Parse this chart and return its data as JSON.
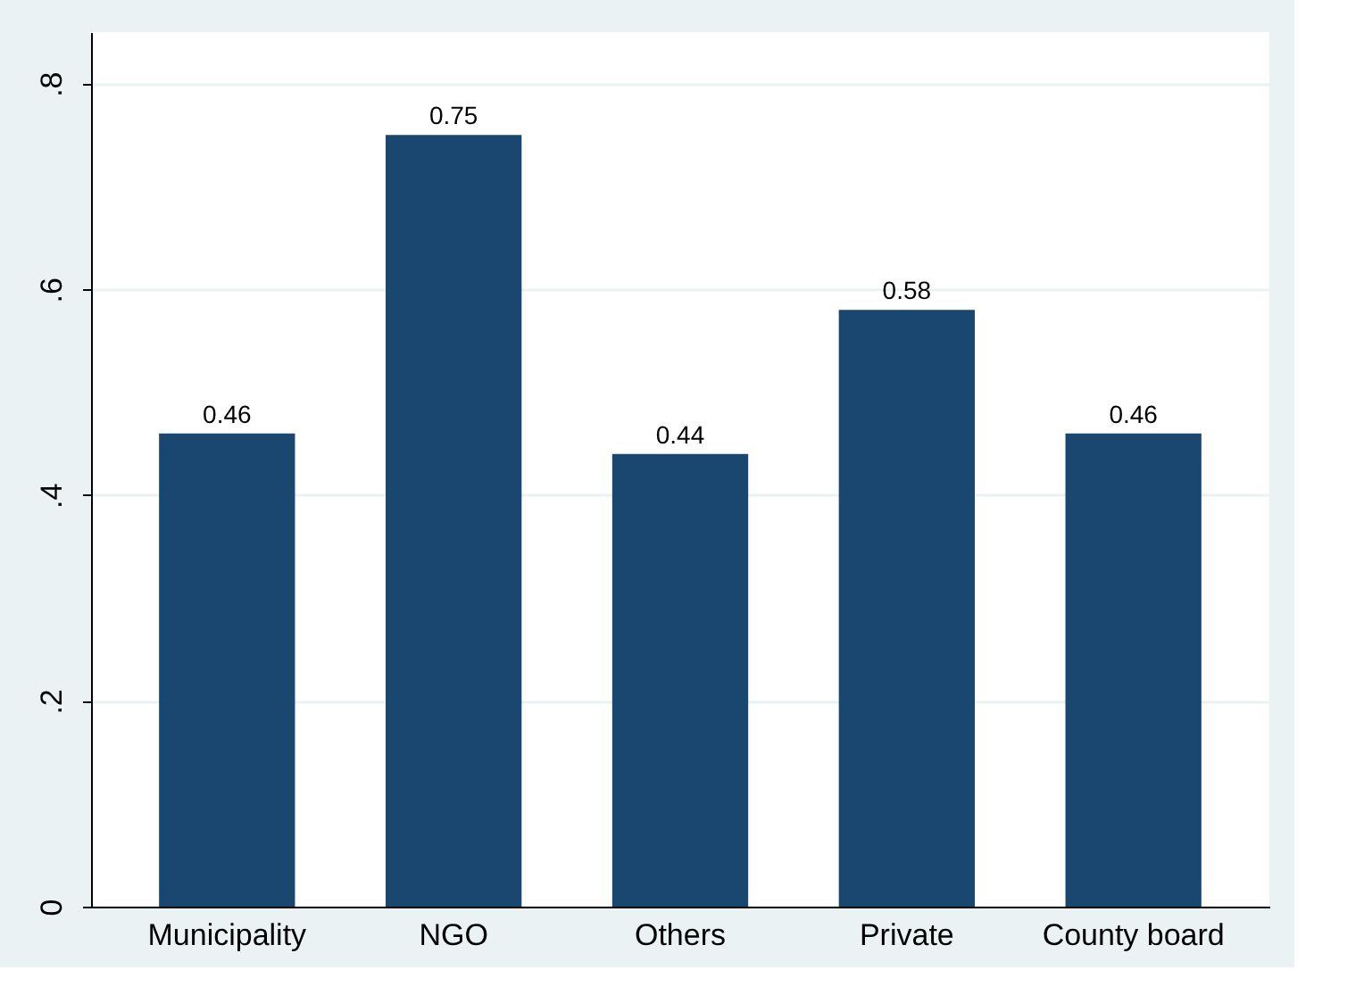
{
  "chart_data": {
    "type": "bar",
    "categories": [
      "Municipality",
      "NGO",
      "Others",
      "Private",
      "County board"
    ],
    "values": [
      0.46,
      0.75,
      0.44,
      0.58,
      0.46
    ],
    "color": "#1a476f",
    "ylim": [
      0,
      0.85
    ],
    "yticks": [
      0,
      {
        "value": 0.2,
        "label": ".2"
      },
      {
        "value": 0.4,
        "label": ".4"
      },
      {
        "value": 0.6,
        "label": ".6"
      },
      {
        "value": 0.8,
        "label": ".8"
      }
    ],
    "grid": "y",
    "data_labels": true
  }
}
